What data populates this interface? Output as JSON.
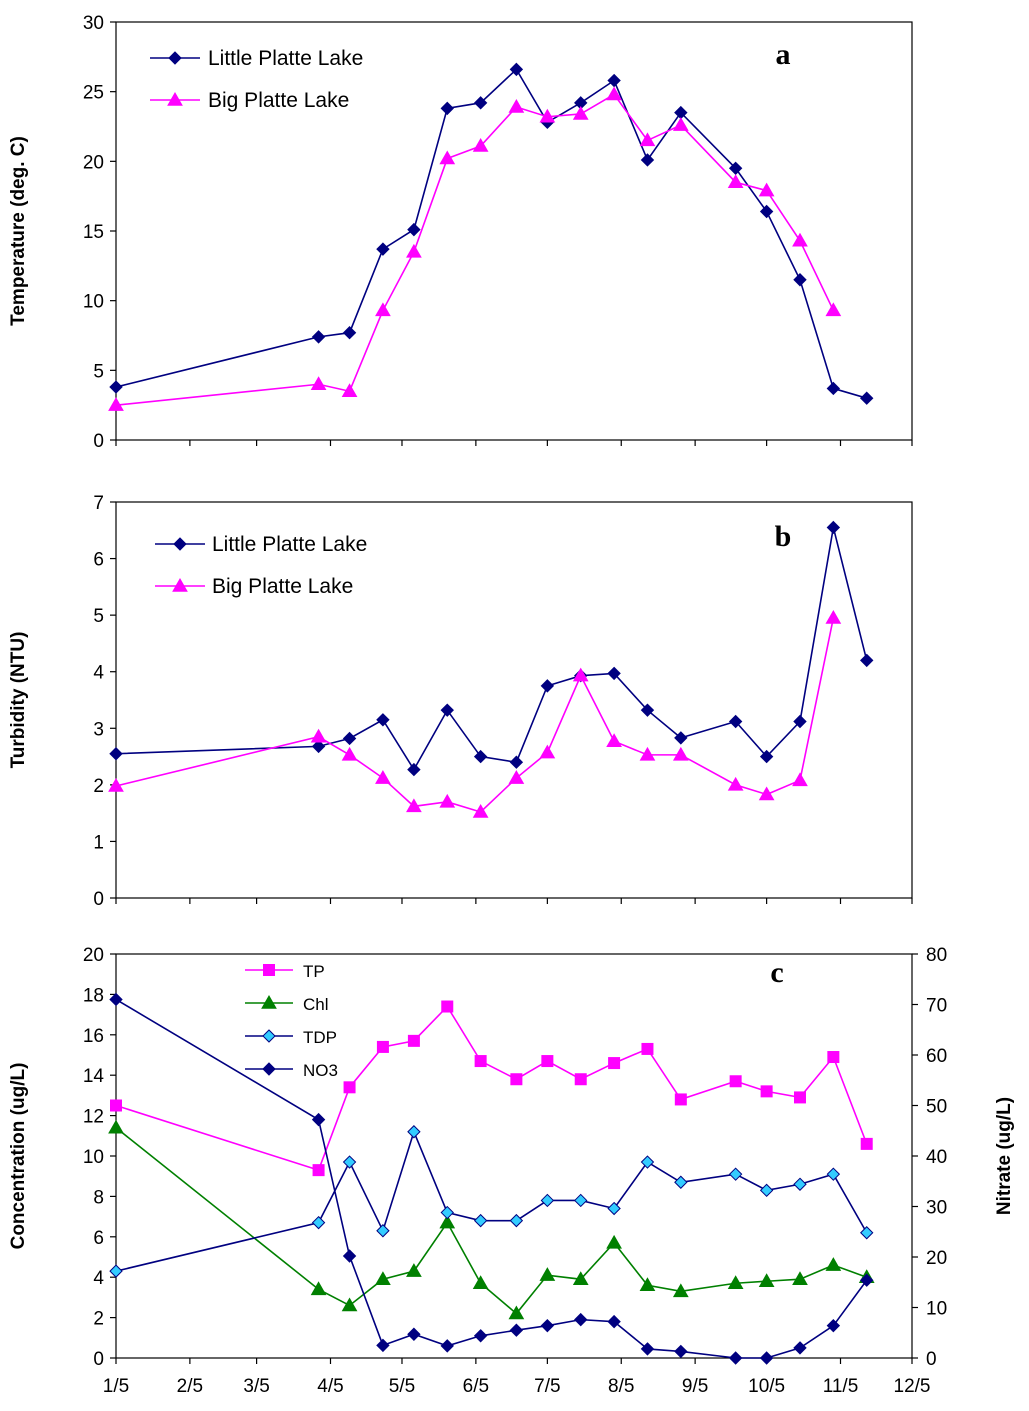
{
  "chart_data": [
    {
      "type": "line",
      "panel_label": "a",
      "title": "",
      "xlabel": "",
      "ylabel": "Temperature (deg. C)",
      "ylim": [
        0,
        30
      ],
      "yticks": [
        0,
        5,
        10,
        15,
        20,
        25,
        30
      ],
      "grid": false,
      "legend_position": "top-left",
      "series": [
        {
          "name": "Little Platte Lake",
          "color": "#000080",
          "marker": "diamond",
          "points": [
            {
              "x": "1/5",
              "y": 3.8
            },
            {
              "x": "3/31",
              "y": 7.4
            },
            {
              "x": "4/13",
              "y": 7.7
            },
            {
              "x": "4/27",
              "y": 13.7
            },
            {
              "x": "5/10",
              "y": 15.1
            },
            {
              "x": "5/24",
              "y": 23.8
            },
            {
              "x": "6/7",
              "y": 24.2
            },
            {
              "x": "6/22",
              "y": 26.6
            },
            {
              "x": "7/5",
              "y": 22.8
            },
            {
              "x": "7/19",
              "y": 24.2
            },
            {
              "x": "8/2",
              "y": 25.8
            },
            {
              "x": "8/16",
              "y": 20.1
            },
            {
              "x": "8/30",
              "y": 23.5
            },
            {
              "x": "9/22",
              "y": 19.5
            },
            {
              "x": "10/5",
              "y": 16.4
            },
            {
              "x": "10/19",
              "y": 11.5
            },
            {
              "x": "11/2",
              "y": 3.7
            },
            {
              "x": "11/16",
              "y": 3.0
            }
          ]
        },
        {
          "name": "Big Platte Lake",
          "color": "#ff00ff",
          "marker": "triangle",
          "points": [
            {
              "x": "1/5",
              "y": 2.5
            },
            {
              "x": "3/31",
              "y": 4.0
            },
            {
              "x": "4/13",
              "y": 3.5
            },
            {
              "x": "4/27",
              "y": 9.3
            },
            {
              "x": "5/10",
              "y": 13.5
            },
            {
              "x": "5/24",
              "y": 20.2
            },
            {
              "x": "6/7",
              "y": 21.1
            },
            {
              "x": "6/22",
              "y": 23.9
            },
            {
              "x": "7/5",
              "y": 23.2
            },
            {
              "x": "7/19",
              "y": 23.4
            },
            {
              "x": "8/2",
              "y": 24.8
            },
            {
              "x": "8/16",
              "y": 21.5
            },
            {
              "x": "8/30",
              "y": 22.6
            },
            {
              "x": "9/22",
              "y": 18.5
            },
            {
              "x": "10/5",
              "y": 17.9
            },
            {
              "x": "10/19",
              "y": 14.3
            },
            {
              "x": "11/2",
              "y": 9.3
            }
          ]
        }
      ]
    },
    {
      "type": "line",
      "panel_label": "b",
      "title": "",
      "xlabel": "",
      "ylabel": "Turbidity (NTU)",
      "ylim": [
        0,
        7
      ],
      "yticks": [
        0,
        1,
        2,
        3,
        4,
        5,
        6,
        7
      ],
      "grid": false,
      "legend_position": "top-left",
      "series": [
        {
          "name": "Little Platte Lake",
          "color": "#000080",
          "marker": "diamond",
          "points": [
            {
              "x": "1/5",
              "y": 2.55
            },
            {
              "x": "3/31",
              "y": 2.68
            },
            {
              "x": "4/13",
              "y": 2.82
            },
            {
              "x": "4/27",
              "y": 3.15
            },
            {
              "x": "5/10",
              "y": 2.27
            },
            {
              "x": "5/24",
              "y": 3.32
            },
            {
              "x": "6/7",
              "y": 2.5
            },
            {
              "x": "6/22",
              "y": 2.4
            },
            {
              "x": "7/5",
              "y": 3.75
            },
            {
              "x": "7/19",
              "y": 3.93
            },
            {
              "x": "8/2",
              "y": 3.97
            },
            {
              "x": "8/16",
              "y": 3.32
            },
            {
              "x": "8/30",
              "y": 2.83
            },
            {
              "x": "9/22",
              "y": 3.12
            },
            {
              "x": "10/5",
              "y": 2.5
            },
            {
              "x": "10/19",
              "y": 3.12
            },
            {
              "x": "11/2",
              "y": 6.55
            },
            {
              "x": "11/16",
              "y": 4.2
            }
          ]
        },
        {
          "name": "Big Platte Lake",
          "color": "#ff00ff",
          "marker": "triangle",
          "points": [
            {
              "x": "1/5",
              "y": 1.98
            },
            {
              "x": "3/31",
              "y": 2.85
            },
            {
              "x": "4/13",
              "y": 2.53
            },
            {
              "x": "4/27",
              "y": 2.12
            },
            {
              "x": "5/10",
              "y": 1.62
            },
            {
              "x": "5/24",
              "y": 1.7
            },
            {
              "x": "6/7",
              "y": 1.52
            },
            {
              "x": "6/22",
              "y": 2.12
            },
            {
              "x": "7/5",
              "y": 2.57
            },
            {
              "x": "7/19",
              "y": 3.93
            },
            {
              "x": "8/2",
              "y": 2.77
            },
            {
              "x": "8/16",
              "y": 2.53
            },
            {
              "x": "8/30",
              "y": 2.53
            },
            {
              "x": "9/22",
              "y": 2.0
            },
            {
              "x": "10/5",
              "y": 1.83
            },
            {
              "x": "10/19",
              "y": 2.08
            },
            {
              "x": "11/2",
              "y": 4.95
            }
          ]
        }
      ]
    },
    {
      "type": "line",
      "panel_label": "c",
      "title": "",
      "xlabel": "",
      "ylabel": "Concentration (ug/L)",
      "ylabel_right": "Nitrate (ug/L)",
      "ylim": [
        0,
        20
      ],
      "yticks": [
        0,
        2,
        4,
        6,
        8,
        10,
        12,
        14,
        16,
        18,
        20
      ],
      "ylim_right": [
        0,
        80
      ],
      "yticks_right": [
        0,
        10,
        20,
        30,
        40,
        50,
        60,
        70,
        80
      ],
      "x_tick_labels": [
        "1/5",
        "2/5",
        "3/5",
        "4/5",
        "5/5",
        "6/5",
        "7/5",
        "8/5",
        "9/5",
        "10/5",
        "11/5",
        "12/5"
      ],
      "grid": false,
      "legend_position": "top-left",
      "series": [
        {
          "name": "TP",
          "color": "#ff00ff",
          "marker": "square",
          "axis": "left",
          "points": [
            {
              "x": "1/5",
              "y": 12.5
            },
            {
              "x": "3/31",
              "y": 9.3
            },
            {
              "x": "4/13",
              "y": 13.4
            },
            {
              "x": "4/27",
              "y": 15.4
            },
            {
              "x": "5/10",
              "y": 15.7
            },
            {
              "x": "5/24",
              "y": 17.4
            },
            {
              "x": "6/7",
              "y": 14.7
            },
            {
              "x": "6/22",
              "y": 13.8
            },
            {
              "x": "7/5",
              "y": 14.7
            },
            {
              "x": "7/19",
              "y": 13.8
            },
            {
              "x": "8/2",
              "y": 14.6
            },
            {
              "x": "8/16",
              "y": 15.3
            },
            {
              "x": "8/30",
              "y": 12.8
            },
            {
              "x": "9/22",
              "y": 13.7
            },
            {
              "x": "10/5",
              "y": 13.2
            },
            {
              "x": "10/19",
              "y": 12.9
            },
            {
              "x": "11/2",
              "y": 14.9
            },
            {
              "x": "11/16",
              "y": 10.6
            }
          ]
        },
        {
          "name": "Chl",
          "color": "#008000",
          "marker": "triangle",
          "axis": "left",
          "points": [
            {
              "x": "1/5",
              "y": 11.4
            },
            {
              "x": "3/31",
              "y": 3.4
            },
            {
              "x": "4/13",
              "y": 2.6
            },
            {
              "x": "4/27",
              "y": 3.9
            },
            {
              "x": "5/10",
              "y": 4.3
            },
            {
              "x": "5/24",
              "y": 6.7
            },
            {
              "x": "6/7",
              "y": 3.7
            },
            {
              "x": "6/22",
              "y": 2.2
            },
            {
              "x": "7/5",
              "y": 4.1
            },
            {
              "x": "7/19",
              "y": 3.9
            },
            {
              "x": "8/2",
              "y": 5.7
            },
            {
              "x": "8/16",
              "y": 3.6
            },
            {
              "x": "8/30",
              "y": 3.3
            },
            {
              "x": "9/22",
              "y": 3.7
            },
            {
              "x": "10/5",
              "y": 3.8
            },
            {
              "x": "10/19",
              "y": 3.9
            },
            {
              "x": "11/2",
              "y": 4.6
            },
            {
              "x": "11/16",
              "y": 4.0
            }
          ]
        },
        {
          "name": "TDP",
          "color": "#000080",
          "marker_fill": "#33ccff",
          "marker": "diamond",
          "axis": "left",
          "points": [
            {
              "x": "1/5",
              "y": 4.3
            },
            {
              "x": "3/31",
              "y": 6.7
            },
            {
              "x": "4/13",
              "y": 9.7
            },
            {
              "x": "4/27",
              "y": 6.3
            },
            {
              "x": "5/10",
              "y": 11.2
            },
            {
              "x": "5/24",
              "y": 7.2
            },
            {
              "x": "6/7",
              "y": 6.8
            },
            {
              "x": "6/22",
              "y": 6.8
            },
            {
              "x": "7/5",
              "y": 7.8
            },
            {
              "x": "7/19",
              "y": 7.8
            },
            {
              "x": "8/2",
              "y": 7.4
            },
            {
              "x": "8/16",
              "y": 9.7
            },
            {
              "x": "8/30",
              "y": 8.7
            },
            {
              "x": "9/22",
              "y": 9.1
            },
            {
              "x": "10/5",
              "y": 8.3
            },
            {
              "x": "10/19",
              "y": 8.6
            },
            {
              "x": "11/2",
              "y": 9.1
            },
            {
              "x": "11/16",
              "y": 6.2
            }
          ]
        },
        {
          "name": "NO3",
          "color": "#000080",
          "marker": "diamond",
          "axis": "right",
          "points": [
            {
              "x": "1/5",
              "y": 71
            },
            {
              "x": "3/31",
              "y": 47.2
            },
            {
              "x": "4/13",
              "y": 20.2
            },
            {
              "x": "4/27",
              "y": 2.5
            },
            {
              "x": "5/10",
              "y": 4.7
            },
            {
              "x": "5/24",
              "y": 2.4
            },
            {
              "x": "6/7",
              "y": 4.4
            },
            {
              "x": "6/22",
              "y": 5.5
            },
            {
              "x": "7/5",
              "y": 6.4
            },
            {
              "x": "7/19",
              "y": 7.6
            },
            {
              "x": "8/2",
              "y": 7.2
            },
            {
              "x": "8/16",
              "y": 1.8
            },
            {
              "x": "8/30",
              "y": 1.3
            },
            {
              "x": "9/22",
              "y": 0
            },
            {
              "x": "10/5",
              "y": 0
            },
            {
              "x": "10/19",
              "y": 2.0
            },
            {
              "x": "11/2",
              "y": 6.4
            },
            {
              "x": "11/16",
              "y": 15.4
            }
          ]
        }
      ]
    }
  ]
}
